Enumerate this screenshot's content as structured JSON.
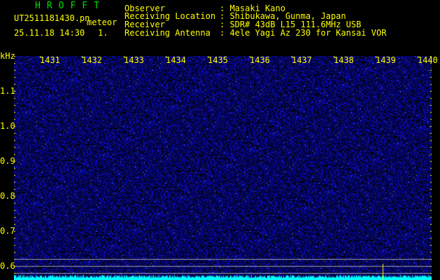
{
  "header": {
    "title": "HROFFT",
    "filename": "UT2511181430.pn",
    "mode": "meteor",
    "datetime": "25.11.18 14:30",
    "count": "1.",
    "info": [
      {
        "label": "Observer",
        "value": ": Masaki Kano"
      },
      {
        "label": "Receiving Location",
        "value": ": Shibukawa, Gunma, Japan"
      },
      {
        "label": "Receiver",
        "value": ": SDR# 43dB L15 111.6MHz USB"
      },
      {
        "label": "Receiving Antenna",
        "value": ": 4ele Yagi Az 230 for Kansai VOR"
      }
    ]
  },
  "spectrogram": {
    "y_unit": "kHz",
    "y_ticks": [
      "1.1",
      "1.0",
      "0.9",
      "0.8",
      "0.7",
      "0.6"
    ],
    "x_ticks": [
      "1431",
      "1432",
      "1433",
      "1434",
      "1435",
      "1436",
      "1437",
      "1438",
      "1439",
      "1440"
    ],
    "colors": {
      "background": "#000010",
      "noise": "#2030c0",
      "spectrum": "#00ffff",
      "grid": "#a0a0a0",
      "labels": "#ffff00",
      "title": "#00e000"
    }
  }
}
